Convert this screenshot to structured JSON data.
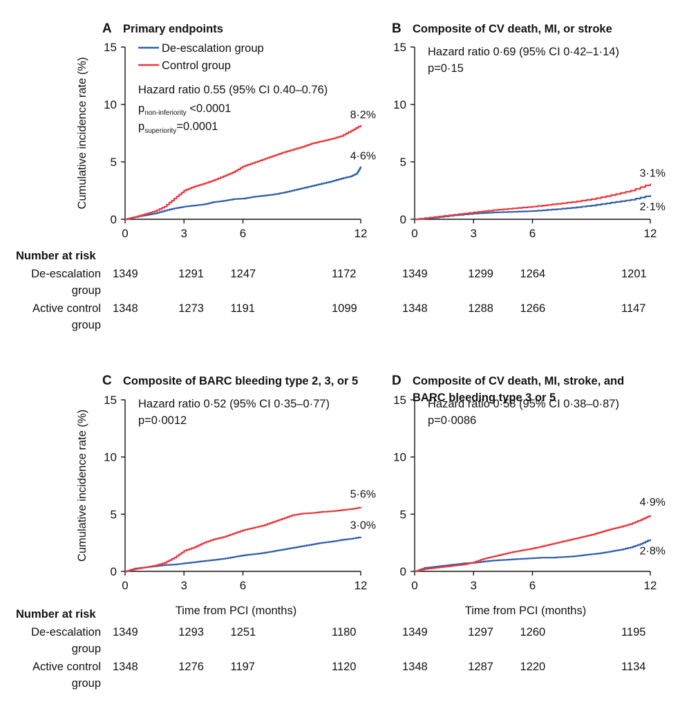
{
  "colors": {
    "deescalation": "#2e5fa8",
    "control": "#e8373f",
    "axis": "#111111"
  },
  "legend": {
    "deescalation": "De-escalation group",
    "control": "Control group"
  },
  "axes": {
    "ylabel": "Cumulative incidence rate (%)",
    "xlabel": "Time from PCI (months)",
    "xticks": [
      0,
      3,
      6,
      12
    ],
    "yticks": [
      0,
      5,
      10,
      15
    ],
    "xlim": [
      0,
      12
    ],
    "ylim": [
      0,
      15
    ]
  },
  "risk_table": {
    "header": "Number at risk",
    "row1_line1": "De-escalation",
    "row1_line2": "group",
    "row2_line1": "Active control",
    "row2_line2": "group"
  },
  "chart_data": [
    {
      "type": "line",
      "letter": "A",
      "title": "Primary endpoints",
      "title_line2": "",
      "stats": {
        "hr": "Hazard ratio 0.55 (95% CI 0.40–0.76)",
        "p1_main": "p",
        "p1_sub": "non-inferiority",
        "p1_rest": " <0.0001",
        "p2_main": "p",
        "p2_sub": "superiority",
        "p2_rest": "=0.0001"
      },
      "end_labels": {
        "deescalation": "4·6%",
        "control": "8·2%"
      },
      "series": [
        {
          "name": "De-escalation group",
          "x": [
            0,
            0.5,
            1,
            1.5,
            2,
            2.5,
            3,
            3.5,
            4,
            4.5,
            5,
            5.5,
            6,
            6.5,
            7,
            7.5,
            8,
            8.5,
            9,
            9.5,
            10,
            10.5,
            11,
            11.5,
            11.8,
            12
          ],
          "values": [
            0,
            0.2,
            0.35,
            0.5,
            0.75,
            0.95,
            1.1,
            1.2,
            1.3,
            1.5,
            1.6,
            1.75,
            1.8,
            1.95,
            2.05,
            2.15,
            2.3,
            2.5,
            2.7,
            2.9,
            3.1,
            3.3,
            3.55,
            3.75,
            4.0,
            4.6
          ]
        },
        {
          "name": "Control group",
          "x": [
            0,
            0.5,
            1,
            1.5,
            2,
            2.5,
            3,
            3.5,
            4,
            4.5,
            5,
            5.5,
            6,
            6.5,
            7,
            7.5,
            8,
            8.5,
            9,
            9.5,
            10,
            10.5,
            11,
            11.5,
            12
          ],
          "values": [
            0,
            0.2,
            0.45,
            0.7,
            1.1,
            1.8,
            2.5,
            2.85,
            3.1,
            3.4,
            3.75,
            4.1,
            4.6,
            4.9,
            5.2,
            5.5,
            5.8,
            6.05,
            6.3,
            6.6,
            6.8,
            7.0,
            7.25,
            7.7,
            8.2
          ]
        }
      ],
      "at_risk": {
        "x": [
          0,
          3,
          6,
          12
        ],
        "deescalation": [
          1349,
          1291,
          1247,
          1172
        ],
        "control": [
          1348,
          1273,
          1191,
          1099
        ]
      }
    },
    {
      "type": "line",
      "letter": "B",
      "title": "Composite of CV death, MI, or stroke",
      "title_line2": "",
      "stats": {
        "hr": "Hazard ratio 0·69 (95% CI 0·42–1·14)",
        "p": "p=0·15"
      },
      "end_labels": {
        "deescalation": "2·1%",
        "control": "3·1%"
      },
      "series": [
        {
          "name": "De-escalation group",
          "x": [
            0,
            1,
            2,
            3,
            4,
            5,
            6,
            7,
            8,
            9,
            10,
            11,
            12
          ],
          "values": [
            0,
            0.15,
            0.35,
            0.5,
            0.6,
            0.65,
            0.72,
            0.85,
            1.0,
            1.2,
            1.45,
            1.7,
            2.1
          ]
        },
        {
          "name": "Control group",
          "x": [
            0,
            1,
            2,
            3,
            4,
            5,
            6,
            7,
            8,
            9,
            10,
            11,
            12
          ],
          "values": [
            0,
            0.2,
            0.4,
            0.6,
            0.8,
            0.95,
            1.1,
            1.3,
            1.5,
            1.75,
            2.1,
            2.5,
            3.1
          ]
        }
      ],
      "at_risk": {
        "x": [
          0,
          3,
          6,
          12
        ],
        "deescalation": [
          1349,
          1299,
          1264,
          1201
        ],
        "control": [
          1348,
          1288,
          1266,
          1147
        ]
      }
    },
    {
      "type": "line",
      "letter": "C",
      "title": "Composite of BARC bleeding type 2, 3, or 5",
      "title_line2": "",
      "stats": {
        "hr": "Hazard ratio 0·52 (95% CI 0·35–0·77)",
        "p": "p=0·0012"
      },
      "end_labels": {
        "deescalation": "3·0%",
        "control": "5·6%"
      },
      "series": [
        {
          "name": "De-escalation group",
          "x": [
            0,
            0.5,
            1,
            1.5,
            2,
            2.5,
            3,
            3.5,
            4,
            4.5,
            5,
            5.5,
            6,
            6.5,
            7,
            7.5,
            8,
            8.5,
            9,
            9.5,
            10,
            10.5,
            11,
            11.5,
            12
          ],
          "values": [
            0,
            0.25,
            0.35,
            0.45,
            0.55,
            0.6,
            0.7,
            0.8,
            0.9,
            1.0,
            1.1,
            1.25,
            1.4,
            1.5,
            1.6,
            1.75,
            1.9,
            2.05,
            2.2,
            2.35,
            2.5,
            2.6,
            2.75,
            2.85,
            3.0
          ]
        },
        {
          "name": "Control group",
          "x": [
            0,
            0.5,
            1,
            1.5,
            2,
            2.5,
            3,
            3.5,
            4,
            4.5,
            5,
            5.5,
            6,
            6.5,
            7,
            7.5,
            8,
            8.5,
            9,
            9.5,
            10,
            10.5,
            11,
            11.5,
            12
          ],
          "values": [
            0,
            0.2,
            0.35,
            0.5,
            0.75,
            1.2,
            1.8,
            2.1,
            2.5,
            2.8,
            3.0,
            3.3,
            3.6,
            3.8,
            4.0,
            4.3,
            4.6,
            4.9,
            5.05,
            5.1,
            5.2,
            5.25,
            5.35,
            5.45,
            5.6
          ]
        }
      ],
      "at_risk": {
        "x": [
          0,
          3,
          6,
          12
        ],
        "deescalation": [
          1349,
          1293,
          1251,
          1180
        ],
        "control": [
          1348,
          1276,
          1197,
          1120
        ]
      }
    },
    {
      "type": "line",
      "letter": "D",
      "title": "Composite of CV death, MI, stroke, and",
      "title_line2": "BARC bleeding type 3 or 5",
      "stats": {
        "hr": "Hazard ratio 0·58 (95% CI 0·38–0·87)",
        "p": "p=0·0086"
      },
      "end_labels": {
        "deescalation": "2·8%",
        "control": "4·9%"
      },
      "series": [
        {
          "name": "De-escalation group",
          "x": [
            0,
            0.5,
            1,
            1.5,
            2,
            2.5,
            3,
            3.5,
            4,
            4.5,
            5,
            5.5,
            6,
            6.5,
            7,
            7.5,
            8,
            8.5,
            9,
            9.5,
            10,
            10.5,
            11,
            11.5,
            12
          ],
          "values": [
            0,
            0.3,
            0.4,
            0.5,
            0.6,
            0.7,
            0.75,
            0.85,
            0.95,
            1.0,
            1.05,
            1.1,
            1.15,
            1.2,
            1.2,
            1.25,
            1.3,
            1.4,
            1.5,
            1.6,
            1.75,
            1.9,
            2.1,
            2.4,
            2.8
          ]
        },
        {
          "name": "Control group",
          "x": [
            0,
            0.5,
            1,
            1.5,
            2,
            2.5,
            3,
            3.5,
            4,
            4.5,
            5,
            5.5,
            6,
            6.5,
            7,
            7.5,
            8,
            8.5,
            9,
            9.5,
            10,
            10.5,
            11,
            11.5,
            12
          ],
          "values": [
            0,
            0.2,
            0.3,
            0.4,
            0.5,
            0.6,
            0.8,
            1.1,
            1.3,
            1.5,
            1.7,
            1.85,
            2.0,
            2.2,
            2.4,
            2.6,
            2.8,
            3.0,
            3.2,
            3.45,
            3.7,
            3.9,
            4.15,
            4.5,
            4.9
          ]
        }
      ],
      "at_risk": {
        "x": [
          0,
          3,
          6,
          12
        ],
        "deescalation": [
          1349,
          1297,
          1260,
          1195
        ],
        "control": [
          1348,
          1287,
          1220,
          1134
        ]
      }
    }
  ]
}
